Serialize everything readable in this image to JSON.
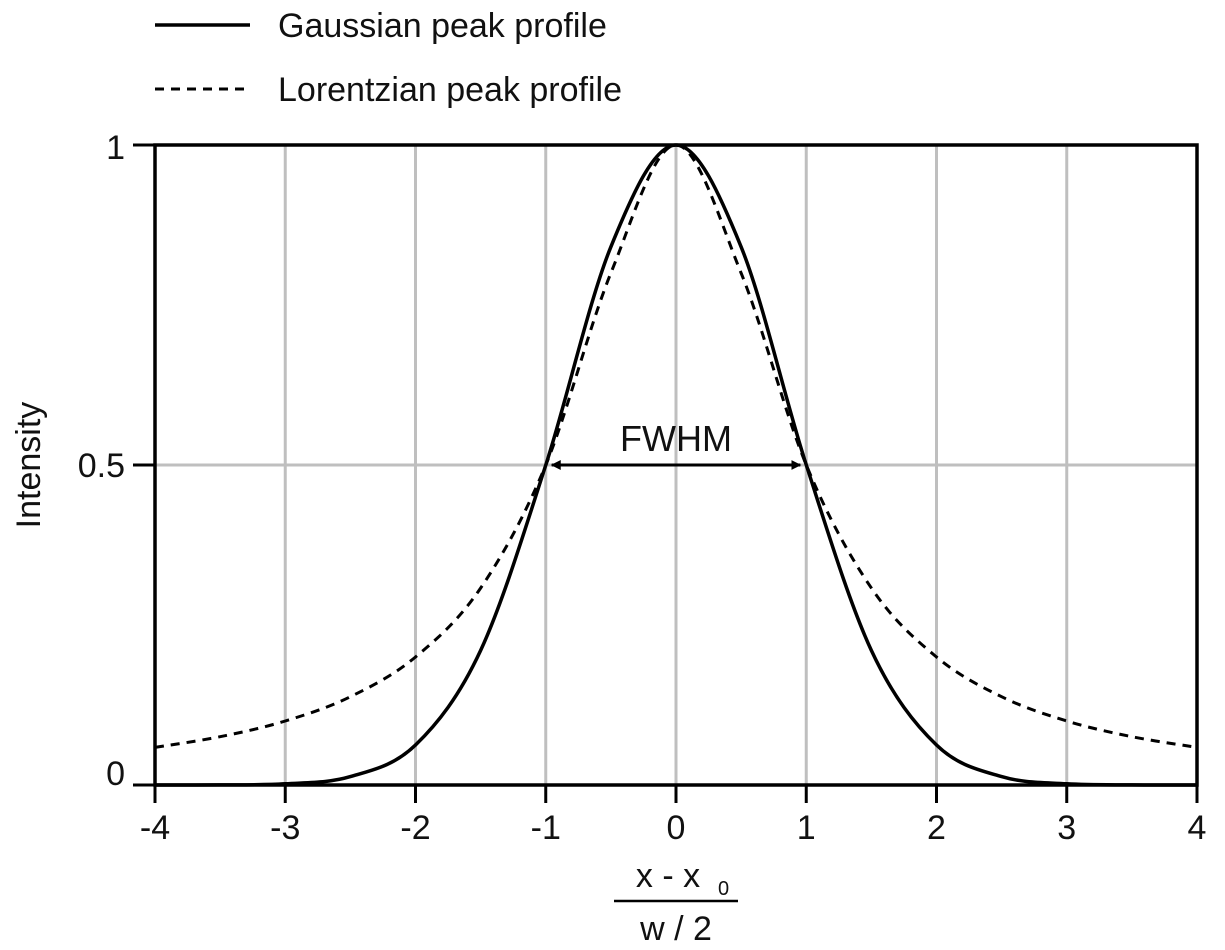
{
  "chart_data": {
    "type": "line",
    "xlabel": {
      "numerator": "x - x",
      "numerator_subscript": "0",
      "denominator": "w / 2"
    },
    "ylabel": "Intensity",
    "xlim": [
      -4,
      4
    ],
    "ylim": [
      0,
      1
    ],
    "xticks": [
      "-4",
      "-3",
      "-2",
      "-1",
      "0",
      "1",
      "2",
      "3",
      "4"
    ],
    "yticks": [
      "0",
      "0.5",
      "1"
    ],
    "grid": true,
    "legend_position": "top-left, above plot",
    "series": [
      {
        "name": "Gaussian peak profile",
        "style": "solid",
        "x": [
          -4,
          -3.5,
          -3,
          -2.5,
          -2,
          -1.5,
          -1,
          -0.5,
          0,
          0.5,
          1,
          1.5,
          2,
          2.5,
          3,
          3.5,
          4
        ],
        "values": [
          1.53e-05,
          0.000207,
          0.00195,
          0.0131,
          0.0625,
          0.2102,
          0.5,
          0.8409,
          1,
          0.8409,
          0.5,
          0.2102,
          0.0625,
          0.0131,
          0.00195,
          0.000207,
          1.53e-05
        ]
      },
      {
        "name": "Lorentzian peak profile",
        "style": "dashed",
        "x": [
          -4,
          -3.5,
          -3,
          -2.5,
          -2,
          -1.5,
          -1,
          -0.5,
          0,
          0.5,
          1,
          1.5,
          2,
          2.5,
          3,
          3.5,
          4
        ],
        "values": [
          0.0588,
          0.0755,
          0.1,
          0.1379,
          0.2,
          0.3077,
          0.5,
          0.8,
          1,
          0.8,
          0.5,
          0.3077,
          0.2,
          0.1379,
          0.1,
          0.0755,
          0.0588
        ]
      }
    ],
    "annotations": [
      {
        "text": "FWHM",
        "from_x": -1,
        "to_x": 1,
        "y": 0.5
      }
    ]
  }
}
